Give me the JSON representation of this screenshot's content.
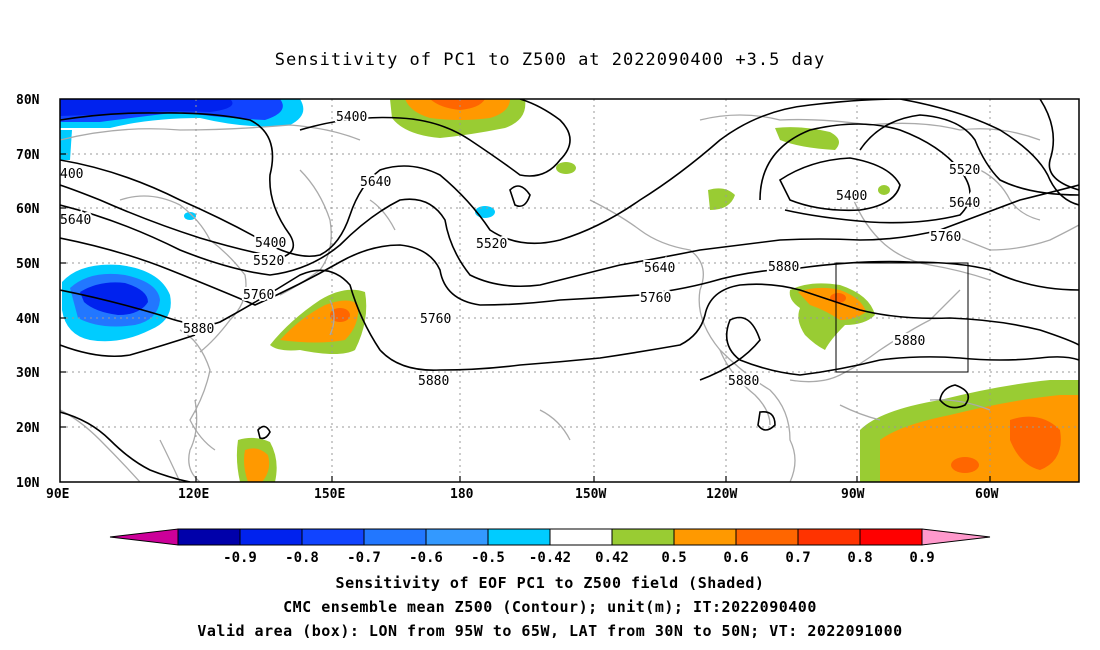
{
  "title": "Sensitivity of PC1 to Z500 at 2022090400 +3.5 day",
  "axes": {
    "lat_labels": [
      "80N",
      "70N",
      "60N",
      "50N",
      "40N",
      "30N",
      "20N",
      "10N"
    ],
    "lon_labels": [
      "90E",
      "120E",
      "150E",
      "180",
      "150W",
      "120W",
      "90W",
      "60W"
    ]
  },
  "contour_labels": [
    {
      "text": "5400",
      "id": "c1"
    },
    {
      "text": "5640",
      "id": "c2"
    },
    {
      "text": "5400",
      "id": "c3"
    },
    {
      "text": "5520",
      "id": "c4"
    },
    {
      "text": "5760",
      "id": "c5"
    },
    {
      "text": "5880",
      "id": "c6"
    },
    {
      "text": "5760",
      "id": "c7"
    },
    {
      "text": "5880",
      "id": "c8"
    },
    {
      "text": "5520",
      "id": "c9"
    },
    {
      "text": "5640",
      "id": "c10"
    },
    {
      "text": "5760",
      "id": "c11"
    },
    {
      "text": "5880",
      "id": "c12"
    },
    {
      "text": "5880",
      "id": "c13"
    },
    {
      "text": "5400",
      "id": "c14"
    },
    {
      "text": "5520",
      "id": "c15"
    },
    {
      "text": "5640",
      "id": "c16"
    },
    {
      "text": "5760",
      "id": "c17"
    },
    {
      "text": "5880",
      "id": "c18"
    },
    {
      "text": "5640",
      "id": "c19"
    },
    {
      "text": "400",
      "id": "c20"
    }
  ],
  "colorbar": {
    "labels": [
      "-0.9",
      "-0.8",
      "-0.7",
      "-0.6",
      "-0.5",
      "-0.42",
      "0.42",
      "0.5",
      "0.6",
      "0.7",
      "0.8",
      "0.9"
    ],
    "colors": [
      "#cc0099",
      "#0000aa",
      "#0022ee",
      "#1144ff",
      "#2277ff",
      "#3399ff",
      "#00ccff",
      "#ffffff",
      "#99cc33",
      "#ff9900",
      "#ff6600",
      "#ff3300",
      "#ff0000",
      "#ff99cc"
    ]
  },
  "captions": [
    "Sensitivity of EOF PC1 to Z500 field (Shaded)",
    "CMC ensemble mean Z500 (Contour); unit(m); IT:2022090400",
    "Valid area (box): LON from 95W to 65W, LAT from 30N to 50N; VT: 2022091000"
  ]
}
